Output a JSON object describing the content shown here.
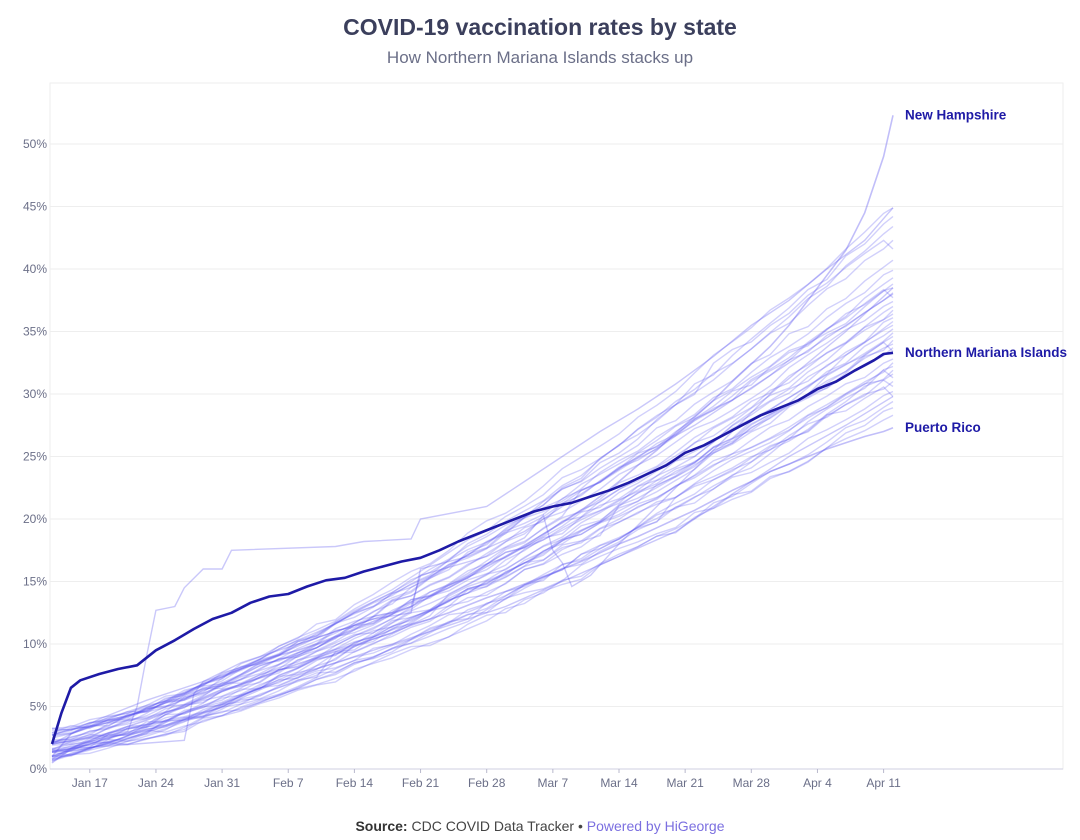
{
  "header": {
    "title": "COVID-19 vaccination rates by state",
    "subtitle": "How Northern Mariana Islands stacks up"
  },
  "footer": {
    "source_label": "Source:",
    "source_text": "CDC COVID Data Tracker",
    "separator": "•",
    "powered_label": "Powered by HiGeorge"
  },
  "colors": {
    "highlight": "#1e1aa6",
    "background_lines": "#5b55f0",
    "grid": "#eeeeee",
    "label": "#1e1aa6"
  },
  "chart_data": {
    "type": "line",
    "title": "COVID-19 vaccination rates by state",
    "subtitle": "How Northern Mariana Islands stacks up",
    "xlabel": "",
    "ylabel": "",
    "x_range_days": [
      0,
      91
    ],
    "ylim": [
      0,
      55
    ],
    "y_ticks": [
      {
        "value": 0,
        "label": "0%"
      },
      {
        "value": 5,
        "label": "5%"
      },
      {
        "value": 10,
        "label": "10%"
      },
      {
        "value": 15,
        "label": "15%"
      },
      {
        "value": 20,
        "label": "20%"
      },
      {
        "value": 25,
        "label": "25%"
      },
      {
        "value": 30,
        "label": "30%"
      },
      {
        "value": 35,
        "label": "35%"
      },
      {
        "value": 40,
        "label": "40%"
      },
      {
        "value": 45,
        "label": "45%"
      },
      {
        "value": 50,
        "label": "50%"
      }
    ],
    "x_ticks": [
      {
        "day": 4,
        "label": "Jan 17"
      },
      {
        "day": 11,
        "label": "Jan 24"
      },
      {
        "day": 18,
        "label": "Jan 31"
      },
      {
        "day": 25,
        "label": "Feb 7"
      },
      {
        "day": 32,
        "label": "Feb 14"
      },
      {
        "day": 39,
        "label": "Feb 21"
      },
      {
        "day": 46,
        "label": "Feb 28"
      },
      {
        "day": 53,
        "label": "Mar 7"
      },
      {
        "day": 60,
        "label": "Mar 14"
      },
      {
        "day": 67,
        "label": "Mar 21"
      },
      {
        "day": 74,
        "label": "Mar 28"
      },
      {
        "day": 81,
        "label": "Apr 4"
      },
      {
        "day": 88,
        "label": "Apr 11"
      }
    ],
    "grid": true,
    "highlight_series": {
      "name": "Northern Mariana Islands",
      "points": [
        [
          0,
          2
        ],
        [
          1,
          4.5
        ],
        [
          2,
          6.5
        ],
        [
          3,
          7.1
        ],
        [
          5,
          7.6
        ],
        [
          7,
          8
        ],
        [
          9,
          8.3
        ],
        [
          11,
          9.5
        ],
        [
          13,
          10.3
        ],
        [
          15,
          11.2
        ],
        [
          17,
          12
        ],
        [
          19,
          12.5
        ],
        [
          21,
          13.3
        ],
        [
          23,
          13.8
        ],
        [
          25,
          14
        ],
        [
          27,
          14.6
        ],
        [
          29,
          15.1
        ],
        [
          31,
          15.3
        ],
        [
          33,
          15.8
        ],
        [
          35,
          16.2
        ],
        [
          37,
          16.6
        ],
        [
          39,
          16.9
        ],
        [
          41,
          17.5
        ],
        [
          43,
          18.2
        ],
        [
          45,
          18.8
        ],
        [
          47,
          19.4
        ],
        [
          49,
          20
        ],
        [
          51,
          20.6
        ],
        [
          53,
          21
        ],
        [
          55,
          21.3
        ],
        [
          57,
          21.8
        ],
        [
          59,
          22.3
        ],
        [
          61,
          22.9
        ],
        [
          63,
          23.6
        ],
        [
          65,
          24.3
        ],
        [
          67,
          25.3
        ],
        [
          69,
          25.9
        ],
        [
          71,
          26.7
        ],
        [
          73,
          27.5
        ],
        [
          75,
          28.3
        ],
        [
          77,
          28.9
        ],
        [
          79,
          29.5
        ],
        [
          81,
          30.4
        ],
        [
          83,
          31
        ],
        [
          85,
          31.9
        ],
        [
          87,
          32.7
        ],
        [
          88,
          33.2
        ],
        [
          89,
          33.3
        ]
      ]
    },
    "labeled_series": [
      {
        "name": "New Hampshire",
        "points": [
          [
            0,
            1
          ],
          [
            2,
            2.8
          ],
          [
            4,
            3.4
          ],
          [
            6,
            3.9
          ],
          [
            8,
            4.3
          ],
          [
            10,
            4.6
          ],
          [
            12,
            5.3
          ],
          [
            14,
            6
          ],
          [
            16,
            6.8
          ],
          [
            18,
            7.4
          ],
          [
            20,
            8
          ],
          [
            22,
            8.6
          ],
          [
            24,
            9.1
          ],
          [
            26,
            9.5
          ],
          [
            28,
            10
          ],
          [
            30,
            10.6
          ],
          [
            32,
            11.2
          ],
          [
            34,
            11.8
          ],
          [
            36,
            12.4
          ],
          [
            38,
            13
          ],
          [
            40,
            13.8
          ],
          [
            42,
            14.5
          ],
          [
            44,
            15.3
          ],
          [
            46,
            16.2
          ],
          [
            48,
            17
          ],
          [
            50,
            17.9
          ],
          [
            52,
            18.8
          ],
          [
            54,
            19.7
          ],
          [
            56,
            20.7
          ],
          [
            58,
            21.8
          ],
          [
            60,
            23
          ],
          [
            62,
            24.3
          ],
          [
            64,
            25.5
          ],
          [
            66,
            26.9
          ],
          [
            68,
            28.2
          ],
          [
            70,
            29.5
          ],
          [
            72,
            31
          ],
          [
            74,
            32.4
          ],
          [
            76,
            33.8
          ],
          [
            78,
            35.5
          ],
          [
            80,
            37.5
          ],
          [
            82,
            39.5
          ],
          [
            84,
            41.5
          ],
          [
            86,
            44.5
          ],
          [
            88,
            49
          ],
          [
            89,
            52.3
          ]
        ]
      },
      {
        "name": "Puerto Rico",
        "points": [
          [
            0,
            0.5
          ],
          [
            2,
            1.6
          ],
          [
            4,
            2.3
          ],
          [
            6,
            2.9
          ],
          [
            8,
            3.4
          ],
          [
            10,
            3.9
          ],
          [
            12,
            4.5
          ],
          [
            14,
            5.1
          ],
          [
            16,
            5.6
          ],
          [
            18,
            6.2
          ],
          [
            20,
            6.8
          ],
          [
            22,
            7.3
          ],
          [
            24,
            7.9
          ],
          [
            26,
            8.4
          ],
          [
            28,
            8.9
          ],
          [
            30,
            9.4
          ],
          [
            32,
            9.9
          ],
          [
            34,
            10.4
          ],
          [
            36,
            10.9
          ],
          [
            38,
            11.5
          ],
          [
            40,
            12
          ],
          [
            42,
            12.5
          ],
          [
            44,
            13.1
          ],
          [
            46,
            13.7
          ],
          [
            48,
            14.2
          ],
          [
            50,
            14.8
          ],
          [
            52,
            15.4
          ],
          [
            54,
            16
          ],
          [
            56,
            16.6
          ],
          [
            58,
            17.3
          ],
          [
            60,
            18
          ],
          [
            62,
            18.6
          ],
          [
            64,
            19.3
          ],
          [
            66,
            20
          ],
          [
            68,
            20.7
          ],
          [
            70,
            21.5
          ],
          [
            72,
            22.3
          ],
          [
            74,
            23
          ],
          [
            76,
            23.8
          ],
          [
            78,
            24.4
          ],
          [
            80,
            25
          ],
          [
            82,
            25.6
          ],
          [
            84,
            26.1
          ],
          [
            86,
            26.6
          ],
          [
            88,
            27
          ],
          [
            89,
            27.3
          ]
        ]
      }
    ],
    "series_labels": [
      {
        "name": "New Hampshire",
        "text": "New Hampshire"
      },
      {
        "name": "Northern Mariana Islands",
        "text": "Northern Mariana Islands"
      },
      {
        "name": "Puerto Rico",
        "text": "Puerto Rico"
      }
    ],
    "background_series_end_values": [
      44.9,
      44.2,
      43.4,
      42.3,
      41.6,
      40.7,
      39.9,
      39.3,
      38.8,
      38.5,
      38.1,
      37.7,
      37.4,
      37.0,
      36.7,
      36.4,
      36.1,
      35.8,
      35.5,
      35.2,
      34.9,
      34.6,
      34.3,
      34.0,
      33.7,
      33.4,
      32.8,
      32.5,
      32.2,
      31.9,
      31.6,
      31.3,
      31.0,
      30.6,
      30.2,
      29.8,
      29.4,
      28.9,
      28.3
    ],
    "background_series": [
      {
        "name": "background-state-a",
        "points": [
          [
            0,
            2
          ],
          [
            8,
            3
          ],
          [
            9,
            5
          ],
          [
            10,
            9
          ],
          [
            11,
            12.7
          ],
          [
            13,
            13
          ],
          [
            14,
            14.5
          ],
          [
            16,
            16
          ],
          [
            18,
            16
          ],
          [
            19,
            17.5
          ],
          [
            30,
            17.8
          ],
          [
            33,
            18.2
          ],
          [
            38,
            18.4
          ],
          [
            39,
            20
          ],
          [
            46,
            21
          ],
          [
            50,
            23
          ],
          [
            54,
            25
          ],
          [
            58,
            27
          ],
          [
            62,
            28.8
          ],
          [
            66,
            30.8
          ],
          [
            70,
            33
          ],
          [
            74,
            35.5
          ],
          [
            78,
            37.5
          ],
          [
            82,
            40
          ],
          [
            86,
            42.3
          ],
          [
            89,
            44.9
          ]
        ]
      },
      {
        "name": "background-state-b",
        "points": [
          [
            0,
            1.5
          ],
          [
            14,
            2.3
          ],
          [
            15,
            6
          ],
          [
            16,
            7
          ],
          [
            20,
            8.5
          ],
          [
            30,
            11
          ],
          [
            38,
            13
          ],
          [
            39,
            15.5
          ],
          [
            46,
            17
          ],
          [
            50,
            18.5
          ],
          [
            52,
            20.3
          ],
          [
            53,
            17.5
          ],
          [
            54,
            16.5
          ],
          [
            55,
            14.6
          ],
          [
            57,
            15.5
          ],
          [
            60,
            18
          ],
          [
            64,
            21
          ],
          [
            68,
            24
          ],
          [
            72,
            27
          ],
          [
            76,
            30
          ],
          [
            80,
            32.5
          ],
          [
            84,
            35
          ],
          [
            89,
            38.5
          ]
        ]
      },
      {
        "name": "background-state-c",
        "points": [
          [
            0,
            2
          ],
          [
            5,
            4
          ],
          [
            10,
            5.5
          ],
          [
            16,
            7
          ],
          [
            22,
            8.5
          ],
          [
            28,
            10.5
          ],
          [
            34,
            12
          ],
          [
            38,
            12.5
          ],
          [
            39,
            16
          ],
          [
            44,
            17
          ],
          [
            50,
            19
          ],
          [
            56,
            22
          ],
          [
            62,
            25
          ],
          [
            68,
            27.5
          ],
          [
            74,
            30.5
          ],
          [
            80,
            33.5
          ],
          [
            86,
            36.5
          ],
          [
            89,
            38
          ]
        ]
      },
      {
        "name": "background-state-d",
        "points": [
          [
            0,
            1
          ],
          [
            6,
            2.5
          ],
          [
            12,
            3.5
          ],
          [
            18,
            5
          ],
          [
            24,
            7
          ],
          [
            30,
            8.5
          ],
          [
            36,
            10
          ],
          [
            42,
            11.5
          ],
          [
            48,
            13
          ],
          [
            54,
            15
          ],
          [
            60,
            17
          ],
          [
            66,
            19
          ],
          [
            72,
            22
          ],
          [
            78,
            25
          ],
          [
            84,
            27.5
          ],
          [
            89,
            29.8
          ]
        ]
      }
    ]
  }
}
